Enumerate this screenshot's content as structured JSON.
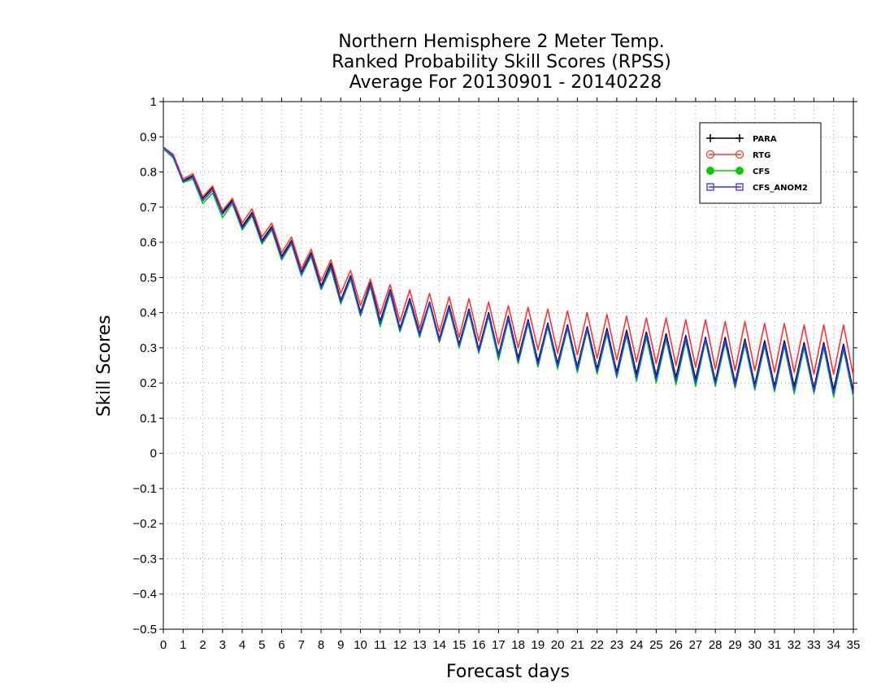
{
  "chart_data": {
    "type": "line",
    "title": [
      "Northern Hemisphere 2 Meter Temp.",
      "Ranked Probability Skill Scores (RPSS)",
      "Average For 20130901 - 20140228"
    ],
    "xlabel": "Forecast days",
    "ylabel": "Skill Scores",
    "xlim": [
      0,
      35
    ],
    "ylim": [
      -0.5,
      1
    ],
    "xticks": [
      "0",
      "1",
      "2",
      "3",
      "4",
      "5",
      "6",
      "7",
      "8",
      "9",
      "10",
      "11",
      "12",
      "13",
      "14",
      "15",
      "16",
      "17",
      "18",
      "19",
      "20",
      "21",
      "22",
      "23",
      "24",
      "25",
      "26",
      "27",
      "28",
      "29",
      "30",
      "31",
      "32",
      "33",
      "34",
      "35"
    ],
    "yticks": [
      "−0.5",
      "−0.4",
      "−0.3",
      "−0.2",
      "−0.1",
      "0",
      "0.1",
      "0.2",
      "0.3",
      "0.4",
      "0.5",
      "0.6",
      "0.7",
      "0.8",
      "0.9",
      "1"
    ],
    "grid": true,
    "legend_position": "top-right",
    "series": [
      {
        "name": "PARA",
        "color": "#000000",
        "marker": "plus",
        "x": [
          0,
          0.5,
          1,
          1.5,
          2,
          2.5,
          3,
          3.5,
          4,
          4.5,
          5,
          5.5,
          6,
          6.5,
          7,
          7.5,
          8,
          8.5,
          9,
          9.5,
          10,
          10.5,
          11,
          11.5,
          12,
          12.5,
          13,
          13.5,
          14,
          14.5,
          15,
          15.5,
          16,
          16.5,
          17,
          17.5,
          18,
          18.5,
          19,
          19.5,
          20,
          20.5,
          21,
          21.5,
          22,
          22.5,
          23,
          23.5,
          24,
          24.5,
          25,
          25.5,
          26,
          26.5,
          27,
          27.5,
          28,
          28.5,
          29,
          29.5,
          30,
          30.5,
          31,
          31.5,
          32,
          32.5,
          33,
          33.5,
          34,
          34.5,
          35
        ],
        "values": [
          0.87,
          0.85,
          0.775,
          0.79,
          0.725,
          0.755,
          0.685,
          0.72,
          0.645,
          0.685,
          0.605,
          0.645,
          0.56,
          0.605,
          0.515,
          0.57,
          0.475,
          0.54,
          0.435,
          0.505,
          0.4,
          0.485,
          0.375,
          0.465,
          0.355,
          0.44,
          0.34,
          0.43,
          0.325,
          0.42,
          0.31,
          0.41,
          0.295,
          0.4,
          0.28,
          0.39,
          0.27,
          0.38,
          0.26,
          0.37,
          0.255,
          0.365,
          0.245,
          0.36,
          0.24,
          0.355,
          0.23,
          0.35,
          0.225,
          0.345,
          0.22,
          0.34,
          0.215,
          0.335,
          0.21,
          0.33,
          0.205,
          0.33,
          0.2,
          0.325,
          0.195,
          0.32,
          0.19,
          0.32,
          0.19,
          0.315,
          0.185,
          0.315,
          0.18,
          0.31,
          0.175
        ]
      },
      {
        "name": "RTG",
        "color": "#ff3333",
        "marker": "circle",
        "x": [
          0,
          0.5,
          1,
          1.5,
          2,
          2.5,
          3,
          3.5,
          4,
          4.5,
          5,
          5.5,
          6,
          6.5,
          7,
          7.5,
          8,
          8.5,
          9,
          9.5,
          10,
          10.5,
          11,
          11.5,
          12,
          12.5,
          13,
          13.5,
          14,
          14.5,
          15,
          15.5,
          16,
          16.5,
          17,
          17.5,
          18,
          18.5,
          19,
          19.5,
          20,
          20.5,
          21,
          21.5,
          22,
          22.5,
          23,
          23.5,
          24,
          24.5,
          25,
          25.5,
          26,
          26.5,
          27,
          27.5,
          28,
          28.5,
          29,
          29.5,
          30,
          30.5,
          31,
          31.5,
          32,
          32.5,
          33,
          33.5,
          34,
          34.5,
          35
        ],
        "values": [
          0.87,
          0.85,
          0.78,
          0.795,
          0.73,
          0.76,
          0.69,
          0.725,
          0.655,
          0.695,
          0.615,
          0.655,
          0.57,
          0.615,
          0.525,
          0.58,
          0.49,
          0.55,
          0.455,
          0.52,
          0.42,
          0.495,
          0.395,
          0.48,
          0.375,
          0.465,
          0.355,
          0.455,
          0.345,
          0.445,
          0.33,
          0.44,
          0.32,
          0.43,
          0.31,
          0.42,
          0.3,
          0.415,
          0.295,
          0.41,
          0.285,
          0.405,
          0.28,
          0.4,
          0.27,
          0.395,
          0.265,
          0.39,
          0.26,
          0.385,
          0.255,
          0.385,
          0.25,
          0.38,
          0.245,
          0.38,
          0.24,
          0.375,
          0.235,
          0.375,
          0.235,
          0.37,
          0.23,
          0.37,
          0.23,
          0.365,
          0.225,
          0.365,
          0.225,
          0.365,
          0.22
        ]
      },
      {
        "name": "CFS",
        "color": "#00cc00",
        "marker": "filled-circle",
        "x": [
          0,
          0.5,
          1,
          1.5,
          2,
          2.5,
          3,
          3.5,
          4,
          4.5,
          5,
          5.5,
          6,
          6.5,
          7,
          7.5,
          8,
          8.5,
          9,
          9.5,
          10,
          10.5,
          11,
          11.5,
          12,
          12.5,
          13,
          13.5,
          14,
          14.5,
          15,
          15.5,
          16,
          16.5,
          17,
          17.5,
          18,
          18.5,
          19,
          19.5,
          20,
          20.5,
          21,
          21.5,
          22,
          22.5,
          23,
          23.5,
          24,
          24.5,
          25,
          25.5,
          26,
          26.5,
          27,
          27.5,
          28,
          28.5,
          29,
          29.5,
          30,
          30.5,
          31,
          31.5,
          32,
          32.5,
          33,
          33.5,
          34,
          34.5,
          35
        ],
        "values": [
          0.865,
          0.84,
          0.77,
          0.78,
          0.71,
          0.74,
          0.67,
          0.71,
          0.635,
          0.675,
          0.595,
          0.635,
          0.55,
          0.595,
          0.505,
          0.56,
          0.465,
          0.525,
          0.425,
          0.495,
          0.39,
          0.475,
          0.36,
          0.455,
          0.345,
          0.43,
          0.33,
          0.425,
          0.315,
          0.41,
          0.3,
          0.4,
          0.285,
          0.39,
          0.265,
          0.38,
          0.255,
          0.37,
          0.245,
          0.36,
          0.24,
          0.355,
          0.23,
          0.35,
          0.225,
          0.34,
          0.215,
          0.335,
          0.205,
          0.33,
          0.2,
          0.325,
          0.195,
          0.32,
          0.19,
          0.32,
          0.19,
          0.315,
          0.185,
          0.31,
          0.18,
          0.305,
          0.175,
          0.305,
          0.17,
          0.3,
          0.17,
          0.3,
          0.16,
          0.295,
          0.16
        ]
      },
      {
        "name": "CFS_ANOM2",
        "color": "#3333ff",
        "marker": "square",
        "x": [
          0,
          0.5,
          1,
          1.5,
          2,
          2.5,
          3,
          3.5,
          4,
          4.5,
          5,
          5.5,
          6,
          6.5,
          7,
          7.5,
          8,
          8.5,
          9,
          9.5,
          10,
          10.5,
          11,
          11.5,
          12,
          12.5,
          13,
          13.5,
          14,
          14.5,
          15,
          15.5,
          16,
          16.5,
          17,
          17.5,
          18,
          18.5,
          19,
          19.5,
          20,
          20.5,
          21,
          21.5,
          22,
          22.5,
          23,
          23.5,
          24,
          24.5,
          25,
          25.5,
          26,
          26.5,
          27,
          27.5,
          28,
          28.5,
          29,
          29.5,
          30,
          30.5,
          31,
          31.5,
          32,
          32.5,
          33,
          33.5,
          34,
          34.5,
          35
        ],
        "values": [
          0.87,
          0.845,
          0.773,
          0.785,
          0.718,
          0.748,
          0.68,
          0.715,
          0.64,
          0.68,
          0.6,
          0.64,
          0.555,
          0.6,
          0.51,
          0.565,
          0.47,
          0.532,
          0.43,
          0.5,
          0.395,
          0.48,
          0.368,
          0.46,
          0.35,
          0.435,
          0.335,
          0.428,
          0.32,
          0.415,
          0.305,
          0.405,
          0.29,
          0.395,
          0.275,
          0.385,
          0.262,
          0.375,
          0.252,
          0.365,
          0.248,
          0.36,
          0.238,
          0.355,
          0.232,
          0.348,
          0.222,
          0.342,
          0.215,
          0.338,
          0.21,
          0.332,
          0.205,
          0.328,
          0.2,
          0.325,
          0.198,
          0.322,
          0.192,
          0.318,
          0.188,
          0.312,
          0.182,
          0.312,
          0.18,
          0.308,
          0.178,
          0.308,
          0.17,
          0.302,
          0.168
        ]
      }
    ]
  }
}
